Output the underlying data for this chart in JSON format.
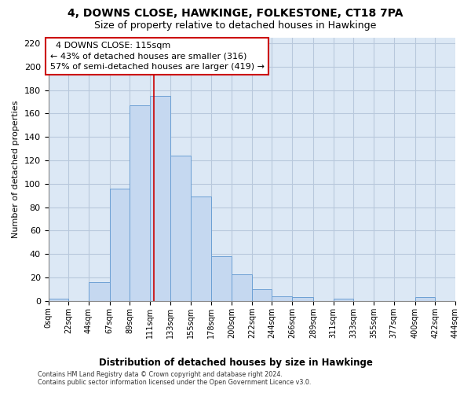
{
  "title1": "4, DOWNS CLOSE, HAWKINGE, FOLKESTONE, CT18 7PA",
  "title2": "Size of property relative to detached houses in Hawkinge",
  "xlabel": "Distribution of detached houses by size in Hawkinge",
  "ylabel": "Number of detached properties",
  "footnote1": "Contains HM Land Registry data © Crown copyright and database right 2024.",
  "footnote2": "Contains public sector information licensed under the Open Government Licence v3.0.",
  "annotation_title": "4 DOWNS CLOSE: 115sqm",
  "annotation_line1": "← 43% of detached houses are smaller (316)",
  "annotation_line2": "57% of semi-detached houses are larger (419) →",
  "property_size": 115,
  "bin_edges": [
    0,
    22,
    44,
    67,
    89,
    111,
    133,
    155,
    178,
    200,
    222,
    244,
    266,
    289,
    311,
    333,
    355,
    377,
    400,
    422,
    444
  ],
  "bar_heights": [
    2,
    0,
    16,
    96,
    167,
    175,
    124,
    89,
    38,
    23,
    10,
    4,
    3,
    0,
    2,
    0,
    0,
    0,
    3,
    0
  ],
  "bar_color": "#c5d8f0",
  "bar_edge_color": "#6ca0d4",
  "vline_color": "#cc0000",
  "annotation_box_edgecolor": "#cc0000",
  "fig_bg_color": "#ffffff",
  "plot_bg_color": "#dce8f5",
  "grid_color": "#b8c8dc",
  "ylim_max": 225,
  "yticks": [
    0,
    20,
    40,
    60,
    80,
    100,
    120,
    140,
    160,
    180,
    200,
    220
  ]
}
